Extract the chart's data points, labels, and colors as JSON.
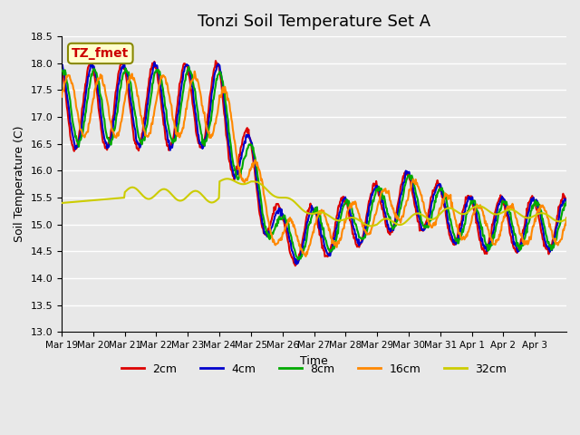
{
  "title": "Tonzi Soil Temperature Set A",
  "xlabel": "Time",
  "ylabel": "Soil Temperature (C)",
  "ylim": [
    13.0,
    18.5
  ],
  "n_days": 16,
  "x_tick_labels": [
    "Mar 19",
    "Mar 20",
    "Mar 21",
    "Mar 22",
    "Mar 23",
    "Mar 24",
    "Mar 25",
    "Mar 26",
    "Mar 27",
    "Mar 28",
    "Mar 29",
    "Mar 30",
    "Mar 31",
    "Apr 1",
    "Apr 2",
    "Apr 3"
  ],
  "series_labels": [
    "2cm",
    "4cm",
    "8cm",
    "16cm",
    "32cm"
  ],
  "series_colors": [
    "#dd0000",
    "#0000cc",
    "#00aa00",
    "#ff8800",
    "#cccc00"
  ],
  "series_linewidths": [
    1.5,
    1.5,
    1.5,
    1.5,
    1.5
  ],
  "annotation_text": "TZ_fmet",
  "bg_color": "#e8e8e8",
  "grid_color": "#ffffff",
  "grid_linewidth": 1.0,
  "title_fontsize": 13,
  "yticks": [
    13.0,
    13.5,
    14.0,
    14.5,
    15.0,
    15.5,
    16.0,
    16.5,
    17.0,
    17.5,
    18.0,
    18.5
  ]
}
